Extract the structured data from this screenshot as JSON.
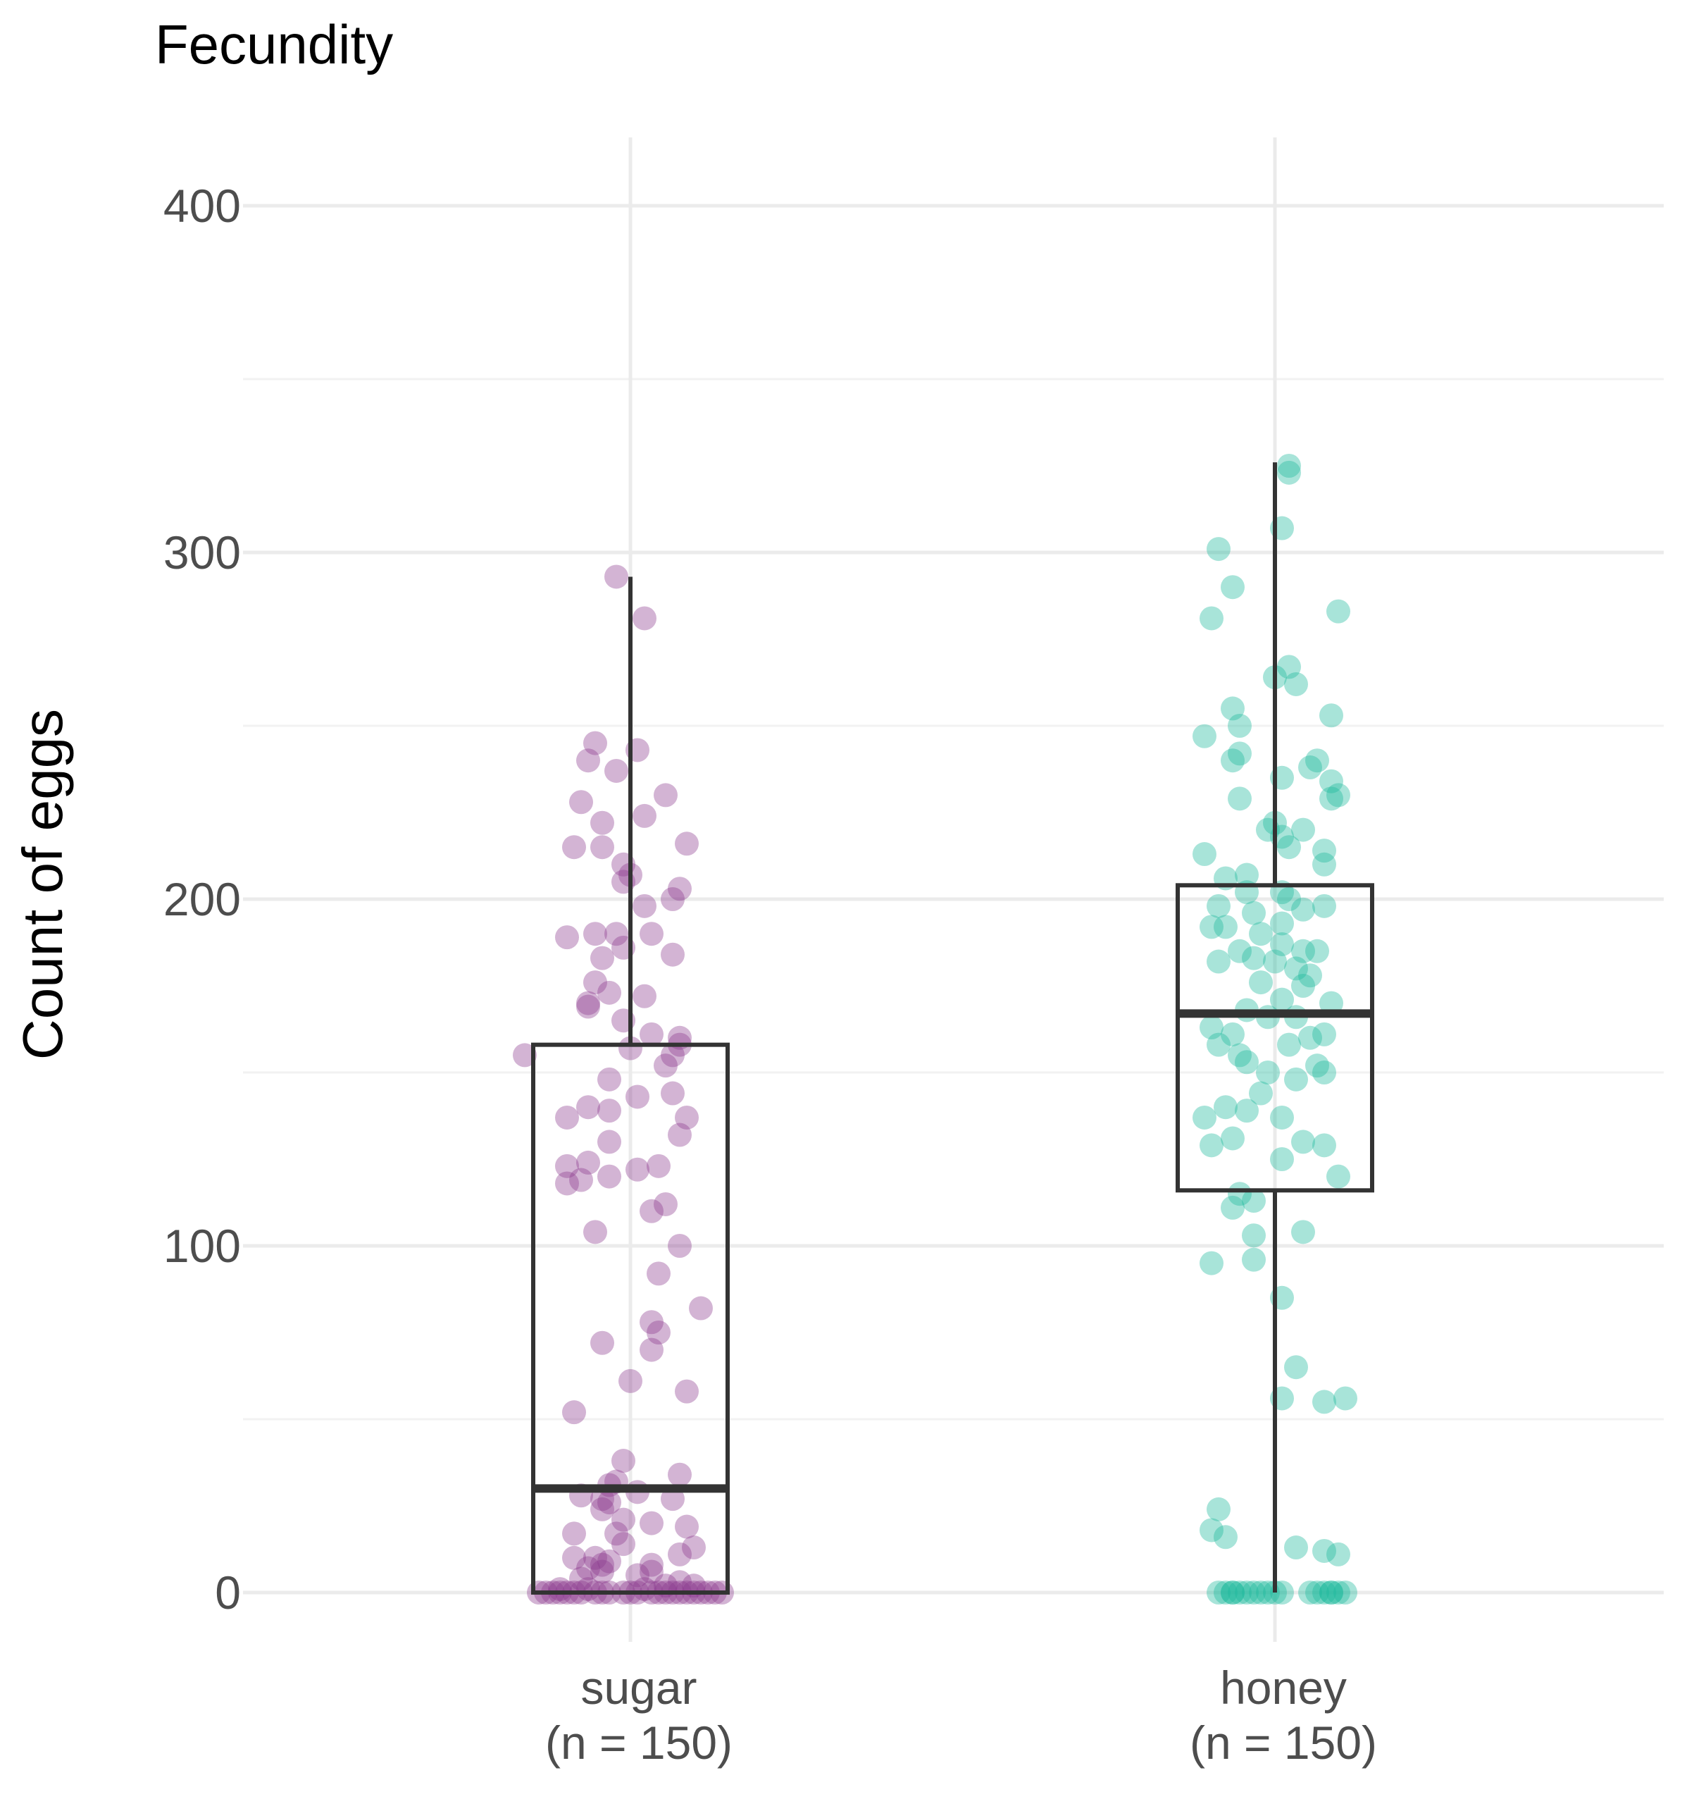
{
  "chart_data": {
    "type": "box",
    "title": "Fecundity",
    "ylabel": "Count of eggs",
    "ylim": [
      -12,
      420
    ],
    "yticks": [
      0,
      100,
      200,
      300,
      400
    ],
    "grid": true,
    "categories": [
      {
        "label_top": "sugar",
        "label_bottom": "(n = 150)"
      },
      {
        "label_top": "honey",
        "label_bottom": "(n = 150)"
      }
    ],
    "series": [
      {
        "color": "#8b3a8f",
        "box": {
          "min": 0,
          "q1": 0,
          "median": 30,
          "q3": 158,
          "max": 293
        },
        "points": [
          [
            -0.02,
            293
          ],
          [
            0.02,
            281
          ],
          [
            -0.05,
            245
          ],
          [
            -0.06,
            240
          ],
          [
            -0.02,
            237
          ],
          [
            0.01,
            243
          ],
          [
            -0.07,
            228
          ],
          [
            0.05,
            230
          ],
          [
            -0.04,
            222
          ],
          [
            0.02,
            224
          ],
          [
            -0.08,
            215
          ],
          [
            -0.04,
            215
          ],
          [
            0.08,
            216
          ],
          [
            -0.01,
            210
          ],
          [
            0.0,
            207
          ],
          [
            -0.01,
            205
          ],
          [
            0.07,
            203
          ],
          [
            0.06,
            200
          ],
          [
            0.02,
            198
          ],
          [
            -0.02,
            190
          ],
          [
            0.03,
            190
          ],
          [
            -0.09,
            189
          ],
          [
            -0.05,
            190
          ],
          [
            -0.01,
            186
          ],
          [
            -0.04,
            183
          ],
          [
            0.06,
            184
          ],
          [
            -0.05,
            176
          ],
          [
            -0.03,
            173
          ],
          [
            0.02,
            172
          ],
          [
            -0.06,
            169
          ],
          [
            -0.06,
            170
          ],
          [
            -0.01,
            165
          ],
          [
            0.03,
            161
          ],
          [
            0.07,
            160
          ],
          [
            0.07,
            158
          ],
          [
            0.0,
            157
          ],
          [
            -0.15,
            155
          ],
          [
            0.06,
            155
          ],
          [
            0.05,
            152
          ],
          [
            -0.03,
            148
          ],
          [
            0.01,
            143
          ],
          [
            0.06,
            144
          ],
          [
            -0.06,
            140
          ],
          [
            -0.09,
            137
          ],
          [
            -0.03,
            139
          ],
          [
            0.08,
            137
          ],
          [
            0.07,
            132
          ],
          [
            -0.03,
            130
          ],
          [
            -0.06,
            124
          ],
          [
            -0.09,
            123
          ],
          [
            0.04,
            123
          ],
          [
            0.01,
            122
          ],
          [
            -0.03,
            120
          ],
          [
            -0.07,
            119
          ],
          [
            -0.09,
            118
          ],
          [
            0.05,
            112
          ],
          [
            0.03,
            110
          ],
          [
            -0.05,
            104
          ],
          [
            0.07,
            100
          ],
          [
            0.04,
            92
          ],
          [
            0.1,
            82
          ],
          [
            0.03,
            78
          ],
          [
            0.04,
            75
          ],
          [
            -0.04,
            72
          ],
          [
            0.03,
            70
          ],
          [
            0.0,
            61
          ],
          [
            0.08,
            58
          ],
          [
            -0.08,
            52
          ],
          [
            -0.01,
            38
          ],
          [
            0.07,
            34
          ],
          [
            -0.02,
            32
          ],
          [
            -0.03,
            31
          ],
          [
            0.01,
            29
          ],
          [
            -0.07,
            28
          ],
          [
            -0.04,
            27
          ],
          [
            -0.03,
            26
          ],
          [
            0.06,
            27
          ],
          [
            -0.04,
            24
          ],
          [
            -0.01,
            21
          ],
          [
            0.03,
            20
          ],
          [
            0.08,
            19
          ],
          [
            -0.08,
            17
          ],
          [
            -0.02,
            17
          ],
          [
            -0.01,
            14
          ],
          [
            0.09,
            13
          ],
          [
            0.07,
            11
          ],
          [
            -0.05,
            10
          ],
          [
            -0.08,
            10
          ],
          [
            -0.04,
            8
          ],
          [
            -0.03,
            9
          ],
          [
            0.03,
            8
          ],
          [
            -0.06,
            7
          ],
          [
            -0.04,
            6
          ],
          [
            0.01,
            5
          ],
          [
            0.03,
            6
          ],
          [
            -0.07,
            4
          ],
          [
            0.07,
            3
          ],
          [
            0.09,
            2
          ],
          [
            -0.1,
            1
          ],
          [
            -0.06,
            1
          ],
          [
            0.02,
            1
          ],
          [
            0.05,
            2
          ],
          [
            -0.13,
            0
          ],
          [
            -0.11,
            0
          ],
          [
            -0.09,
            0
          ],
          [
            -0.07,
            0
          ],
          [
            -0.05,
            0
          ],
          [
            -0.03,
            0
          ],
          [
            -0.01,
            0
          ],
          [
            0.01,
            0
          ],
          [
            0.03,
            0
          ],
          [
            0.05,
            0
          ],
          [
            0.07,
            0
          ],
          [
            0.09,
            0
          ],
          [
            0.11,
            0
          ],
          [
            0.13,
            0
          ],
          [
            -0.12,
            0
          ],
          [
            -0.08,
            0
          ],
          [
            -0.04,
            0
          ],
          [
            0.0,
            0
          ],
          [
            0.04,
            0
          ],
          [
            0.08,
            0
          ],
          [
            0.12,
            0
          ],
          [
            -0.1,
            0
          ],
          [
            0.06,
            0
          ],
          [
            0.1,
            0
          ]
        ]
      },
      {
        "color": "#1ab79b",
        "box": {
          "min": 0,
          "q1": 116,
          "median": 167,
          "q3": 204,
          "max": 326
        },
        "points": [
          [
            0.02,
            325
          ],
          [
            0.02,
            323
          ],
          [
            0.01,
            307
          ],
          [
            -0.08,
            301
          ],
          [
            -0.06,
            290
          ],
          [
            0.09,
            283
          ],
          [
            -0.09,
            281
          ],
          [
            0.02,
            267
          ],
          [
            0.0,
            264
          ],
          [
            0.03,
            262
          ],
          [
            -0.06,
            255
          ],
          [
            0.08,
            253
          ],
          [
            -0.05,
            250
          ],
          [
            -0.1,
            247
          ],
          [
            -0.05,
            242
          ],
          [
            -0.06,
            240
          ],
          [
            0.06,
            240
          ],
          [
            0.05,
            238
          ],
          [
            0.08,
            234
          ],
          [
            0.01,
            235
          ],
          [
            0.09,
            230
          ],
          [
            0.08,
            229
          ],
          [
            -0.05,
            229
          ],
          [
            0.0,
            222
          ],
          [
            -0.01,
            220
          ],
          [
            0.04,
            220
          ],
          [
            0.01,
            218
          ],
          [
            0.02,
            215
          ],
          [
            0.07,
            214
          ],
          [
            -0.1,
            213
          ],
          [
            0.07,
            210
          ],
          [
            -0.04,
            207
          ],
          [
            -0.07,
            206
          ],
          [
            0.01,
            202
          ],
          [
            -0.04,
            202
          ],
          [
            0.02,
            200
          ],
          [
            -0.08,
            198
          ],
          [
            0.07,
            198
          ],
          [
            0.04,
            197
          ],
          [
            -0.03,
            196
          ],
          [
            0.01,
            193
          ],
          [
            -0.09,
            192
          ],
          [
            -0.07,
            192
          ],
          [
            -0.02,
            190
          ],
          [
            0.01,
            187
          ],
          [
            -0.05,
            185
          ],
          [
            0.04,
            185
          ],
          [
            0.06,
            185
          ],
          [
            -0.03,
            183
          ],
          [
            0.0,
            182
          ],
          [
            -0.08,
            182
          ],
          [
            0.03,
            180
          ],
          [
            0.05,
            178
          ],
          [
            -0.02,
            176
          ],
          [
            0.04,
            175
          ],
          [
            0.01,
            171
          ],
          [
            -0.04,
            168
          ],
          [
            0.08,
            170
          ],
          [
            -0.01,
            166
          ],
          [
            0.03,
            166
          ],
          [
            -0.09,
            163
          ],
          [
            -0.06,
            161
          ],
          [
            0.07,
            161
          ],
          [
            0.05,
            160
          ],
          [
            -0.08,
            158
          ],
          [
            0.02,
            158
          ],
          [
            -0.05,
            155
          ],
          [
            -0.04,
            153
          ],
          [
            0.06,
            152
          ],
          [
            0.07,
            150
          ],
          [
            -0.01,
            150
          ],
          [
            0.03,
            148
          ],
          [
            -0.02,
            144
          ],
          [
            -0.07,
            140
          ],
          [
            -0.1,
            137
          ],
          [
            -0.04,
            139
          ],
          [
            0.01,
            137
          ],
          [
            0.04,
            130
          ],
          [
            0.07,
            129
          ],
          [
            -0.09,
            129
          ],
          [
            -0.06,
            131
          ],
          [
            0.01,
            125
          ],
          [
            0.09,
            120
          ],
          [
            -0.05,
            115
          ],
          [
            -0.03,
            113
          ],
          [
            -0.06,
            111
          ],
          [
            -0.03,
            103
          ],
          [
            0.04,
            104
          ],
          [
            -0.09,
            95
          ],
          [
            -0.03,
            96
          ],
          [
            0.01,
            85
          ],
          [
            0.03,
            65
          ],
          [
            0.01,
            56
          ],
          [
            0.07,
            55
          ],
          [
            0.1,
            56
          ],
          [
            -0.08,
            24
          ],
          [
            -0.09,
            18
          ],
          [
            -0.07,
            16
          ],
          [
            0.03,
            13
          ],
          [
            0.07,
            12
          ],
          [
            0.09,
            11
          ],
          [
            -0.08,
            0
          ],
          [
            -0.07,
            0
          ],
          [
            -0.06,
            0
          ],
          [
            -0.05,
            0
          ],
          [
            -0.04,
            0
          ],
          [
            -0.03,
            0
          ],
          [
            -0.02,
            0
          ],
          [
            -0.01,
            0
          ],
          [
            0.0,
            0
          ],
          [
            0.01,
            0
          ],
          [
            0.06,
            0
          ],
          [
            0.07,
            0
          ],
          [
            0.08,
            0
          ],
          [
            0.09,
            0
          ],
          [
            0.1,
            0
          ],
          [
            0.05,
            0
          ],
          [
            -0.06,
            0
          ],
          [
            0.08,
            0
          ]
        ]
      }
    ]
  }
}
